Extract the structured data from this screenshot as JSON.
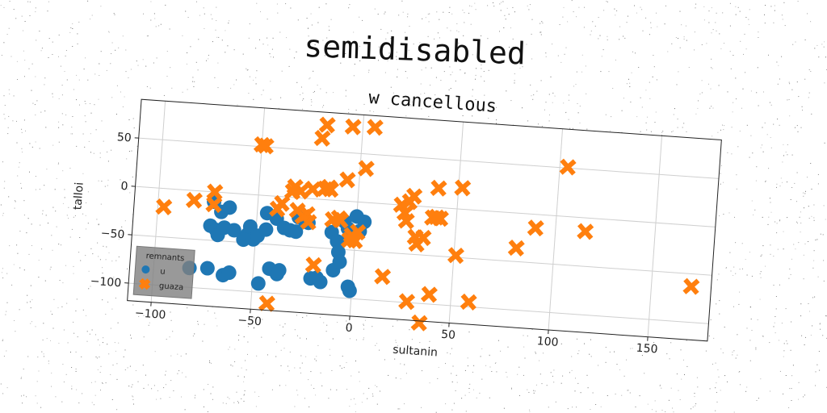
{
  "figure": {
    "suptitle": "semidisabled"
  },
  "chart_data": {
    "type": "scatter",
    "title": "w cancellous",
    "xlabel": "sultanin",
    "ylabel": "talloi",
    "xlim": [
      -112,
      180
    ],
    "ylim": [
      -118,
      90
    ],
    "xticks": [
      -100,
      -50,
      0,
      50,
      100,
      150
    ],
    "yticks": [
      -100,
      -50,
      0,
      50
    ],
    "grid": true,
    "legend": {
      "title": "remnants",
      "position": "lower-left"
    },
    "series": [
      {
        "name": "u",
        "marker": "circle",
        "color": "#1f77b4",
        "points": [
          [
            -82,
            -80
          ],
          [
            -73,
            -79
          ],
          [
            -73,
            -35
          ],
          [
            -72,
            -10
          ],
          [
            -70,
            -39
          ],
          [
            -69,
            -44
          ],
          [
            -68,
            -20
          ],
          [
            -66,
            -36
          ],
          [
            -65,
            -85
          ],
          [
            -64,
            -15
          ],
          [
            -62,
            -82
          ],
          [
            -61,
            -38
          ],
          [
            -56,
            -47
          ],
          [
            -54,
            -41
          ],
          [
            -53,
            -33
          ],
          [
            -51,
            -46
          ],
          [
            -49,
            -42
          ],
          [
            -47,
            -91
          ],
          [
            -45,
            -35
          ],
          [
            -45,
            -18
          ],
          [
            -42,
            -75
          ],
          [
            -40,
            -23
          ],
          [
            -38,
            -80
          ],
          [
            -37,
            -76
          ],
          [
            -36,
            -32
          ],
          [
            -33,
            -34
          ],
          [
            -30,
            -35
          ],
          [
            -29,
            -20
          ],
          [
            -26,
            -23
          ],
          [
            -24,
            -25
          ],
          [
            -21,
            -82
          ],
          [
            -18,
            -81
          ],
          [
            -16,
            -85
          ],
          [
            -12,
            -33
          ],
          [
            -10,
            -72
          ],
          [
            -9,
            -42
          ],
          [
            -8,
            -53
          ],
          [
            -7,
            -63
          ],
          [
            -6,
            -21
          ],
          [
            -4,
            -28
          ],
          [
            -3,
            -38
          ],
          [
            -2,
            -88
          ],
          [
            -1,
            -92
          ],
          [
            0,
            -15
          ],
          [
            2,
            -30
          ],
          [
            4,
            -20
          ]
        ]
      },
      {
        "name": "guaza",
        "marker": "x",
        "color": "#ff7f0e",
        "points": [
          [
            -97,
            -19
          ],
          [
            -82,
            -10
          ],
          [
            -72,
            0
          ],
          [
            -72,
            -13
          ],
          [
            -50,
            52
          ],
          [
            -48,
            51
          ],
          [
            -42,
            -111
          ],
          [
            -40,
            -13
          ],
          [
            -38,
            -7
          ],
          [
            -33,
            6
          ],
          [
            -32,
            11
          ],
          [
            -30,
            -13
          ],
          [
            -29,
            7
          ],
          [
            -27,
            -19
          ],
          [
            -25,
            -16
          ],
          [
            -24,
            -24
          ],
          [
            -23,
            10
          ],
          [
            -20,
            -68
          ],
          [
            -20,
            63
          ],
          [
            -18,
            77
          ],
          [
            -17,
            11
          ],
          [
            -15,
            13
          ],
          [
            -14,
            11
          ],
          [
            -12,
            -20
          ],
          [
            -9,
            -18
          ],
          [
            -8,
            -20
          ],
          [
            -6,
            22
          ],
          [
            -5,
            77
          ],
          [
            -3,
            -40
          ],
          [
            -2,
            -35
          ],
          [
            0,
            -40
          ],
          [
            1,
            -31
          ],
          [
            3,
            35
          ],
          [
            6,
            78
          ],
          [
            15,
            -75
          ],
          [
            22,
            0
          ],
          [
            24,
            -8
          ],
          [
            25,
            -16
          ],
          [
            26,
            4
          ],
          [
            28,
            10
          ],
          [
            28,
            -99
          ],
          [
            30,
            -32
          ],
          [
            31,
            -39
          ],
          [
            34,
            -32
          ],
          [
            35,
            -120
          ],
          [
            38,
            -11
          ],
          [
            39,
            -90
          ],
          [
            40,
            -10
          ],
          [
            40,
            20
          ],
          [
            42,
            -11
          ],
          [
            51,
            -48
          ],
          [
            52,
            22
          ],
          [
            59,
            -95
          ],
          [
            81,
            -36
          ],
          [
            90,
            -14
          ],
          [
            104,
            51
          ],
          [
            115,
            -14
          ],
          [
            170,
            -63
          ]
        ]
      }
    ]
  }
}
